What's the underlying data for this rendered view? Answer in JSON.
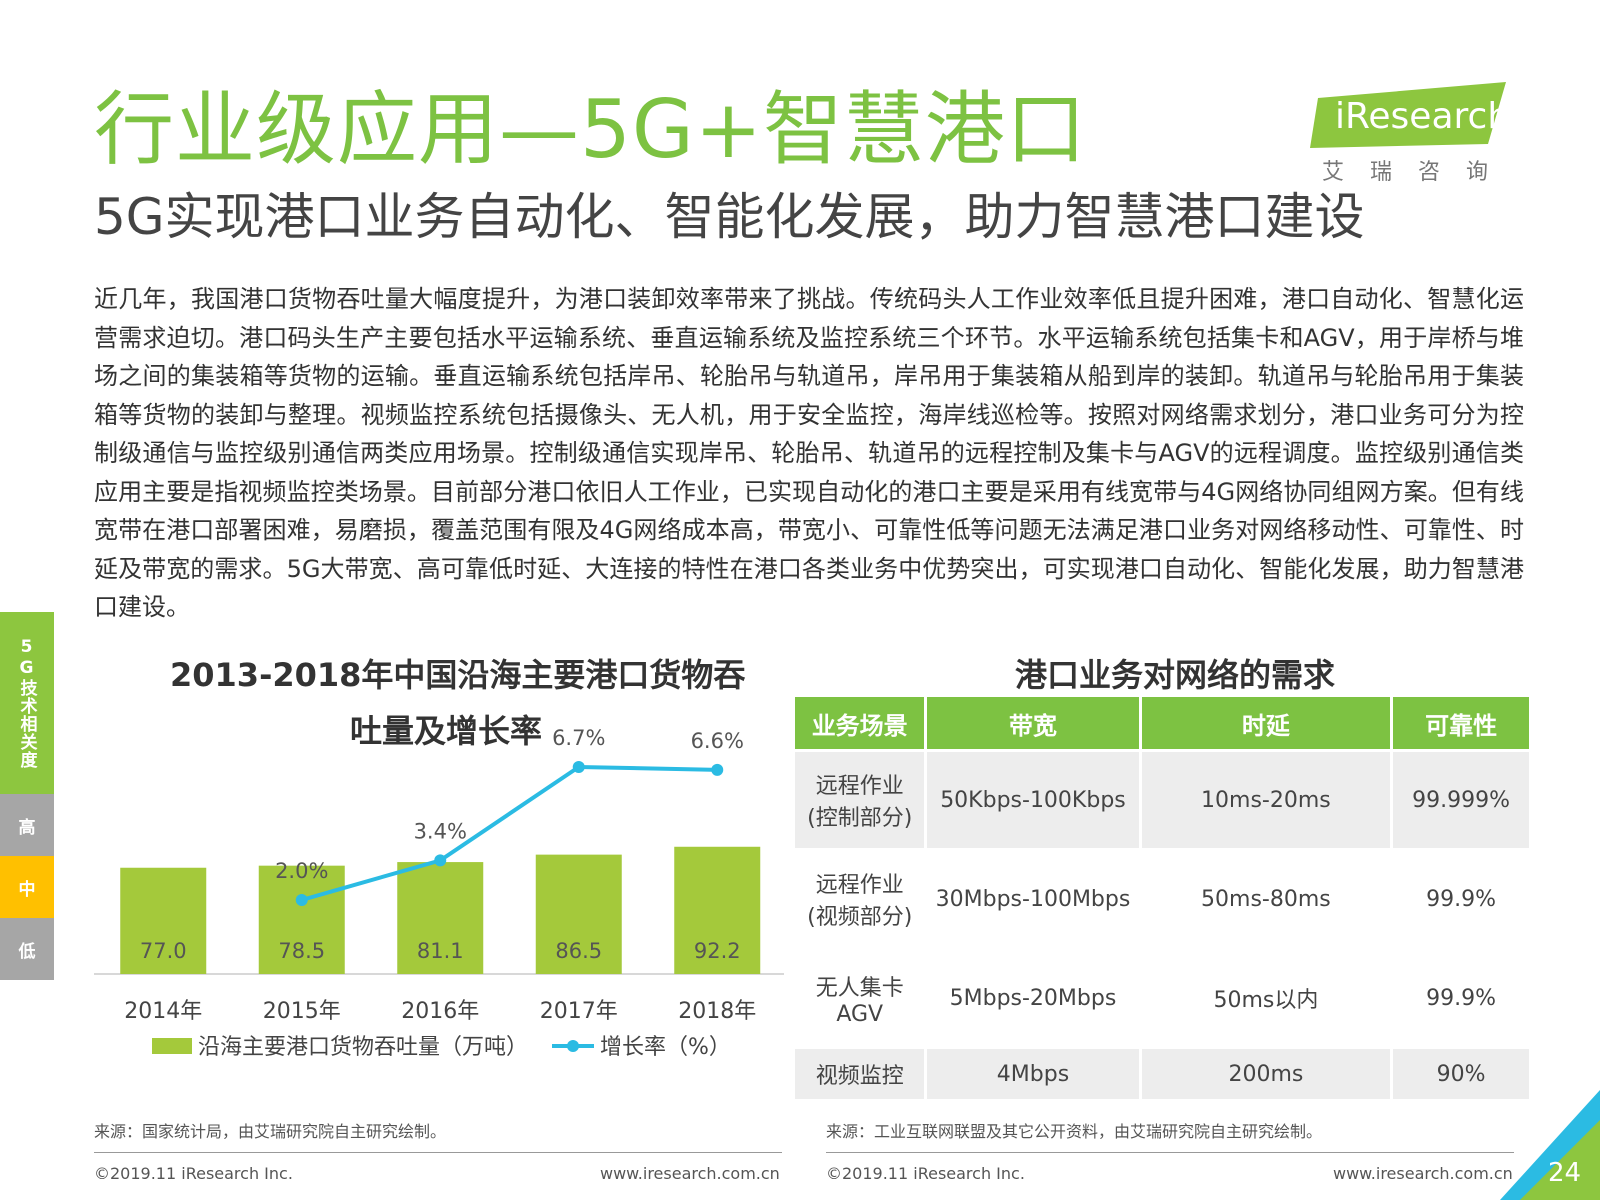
{
  "header": {
    "title": "行业级应用—5G+智慧港口",
    "subtitle": "5G实现港口业务自动化、智能化发展，助力智慧港口建设",
    "logo_text": "iResearch",
    "logo_sub": "艾瑞咨询"
  },
  "body_text": "近几年，我国港口货物吞吐量大幅度提升，为港口装卸效率带来了挑战。传统码头人工作业效率低且提升困难，港口自动化、智慧化运营需求迫切。港口码头生产主要包括水平运输系统、垂直运输系统及监控系统三个环节。水平运输系统包括集卡和AGV，用于岸桥与堆场之间的集装箱等货物的运输。垂直运输系统包括岸吊、轮胎吊与轨道吊，岸吊用于集装箱从船到岸的装卸。轨道吊与轮胎吊用于集装箱等货物的装卸与整理。视频监控系统包括摄像头、无人机，用于安全监控，海岸线巡检等。按照对网络需求划分，港口业务可分为控制级通信与监控级别通信两类应用场景。控制级通信实现岸吊、轮胎吊、轨道吊的远程控制及集卡与AGV的远程调度。监控级别通信类应用主要是指视频监控类场景。目前部分港口依旧人工作业，已实现自动化的港口主要是采用有线宽带与4G网络协同组网方案。但有线宽带在港口部署困难，易磨损，覆盖范围有限及4G网络成本高，带宽小、可靠性低等问题无法满足港口业务对网络移动性、可靠性、时延及带宽的需求。5G大带宽、高可靠低时延、大连接的特性在港口各类业务中优势突出，可实现港口自动化、智能化发展，助力智慧港口建设。",
  "side_nav": {
    "category": "5G技术相关度",
    "high": "高",
    "mid": "中",
    "low": "低"
  },
  "chart_data": {
    "type": "bar",
    "title_line1": "2013-2018年中国沿海主要港口货物吞",
    "title_line2": "吐量及增长率",
    "categories": [
      "2014年",
      "2015年",
      "2016年",
      "2017年",
      "2018年"
    ],
    "series": [
      {
        "name": "沿海主要港口货物吞吐量（万吨）",
        "type": "bar",
        "values": [
          77.0,
          78.5,
          81.1,
          86.5,
          92.2
        ],
        "labels": [
          "77.0",
          "78.5",
          "81.1",
          "86.5",
          "92.2"
        ],
        "color": "#a4c93b"
      },
      {
        "name": "增长率（%）",
        "type": "line",
        "values": [
          null,
          2.0,
          3.4,
          6.7,
          6.6
        ],
        "labels": [
          "",
          "2.0%",
          "3.4%",
          "6.7%",
          "6.6%"
        ],
        "color": "#2bbbe3"
      }
    ],
    "grid": false,
    "legend": "bottom"
  },
  "table": {
    "title": "港口业务对网络的需求",
    "headers": [
      "业务场景",
      "带宽",
      "时延",
      "可靠性"
    ],
    "rows": [
      {
        "scene1": "远程作业",
        "scene2": "(控制部分)",
        "bandwidth": "50Kbps-100Kbps",
        "latency": "10ms-20ms",
        "reliability": "99.999%"
      },
      {
        "scene1": "远程作业",
        "scene2": "(视频部分)",
        "bandwidth": "30Mbps-100Mbps",
        "latency": "50ms-80ms",
        "reliability": "99.9%"
      },
      {
        "scene1": "无人集卡",
        "scene2": "AGV",
        "bandwidth": "5Mbps-20Mbps",
        "latency": "50ms以内",
        "reliability": "99.9%"
      },
      {
        "scene1": "视频监控",
        "scene2": "",
        "bandwidth": "4Mbps",
        "latency": "200ms",
        "reliability": "90%"
      }
    ]
  },
  "sources": {
    "left": "来源：国家统计局，由艾瑞研究院自主研究绘制。",
    "right": "来源：工业互联网联盟及其它公开资料，由艾瑞研究院自主研究绘制。"
  },
  "footer": {
    "copyright": "©2019.11 iResearch Inc.",
    "website": "www.iresearch.com.cn",
    "page_number": "24"
  },
  "colors": {
    "brand_green": "#7dc242",
    "bar_green": "#a4c93b",
    "line_blue": "#2bbbe3",
    "nav_gray": "#a6a6a6",
    "nav_yellow": "#ffc000"
  }
}
